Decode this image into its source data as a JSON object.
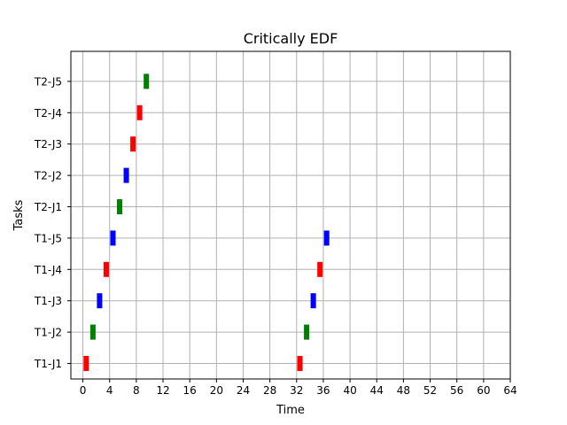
{
  "chart_data": {
    "type": "gantt",
    "title": "Critically EDF",
    "xlabel": "Time",
    "ylabel": "Tasks",
    "xlim": [
      -1.8,
      64
    ],
    "xticks": [
      0,
      4,
      8,
      12,
      16,
      20,
      24,
      28,
      32,
      36,
      40,
      44,
      48,
      52,
      56,
      60,
      64
    ],
    "grid": true,
    "tasks": [
      "T1-J1",
      "T1-J2",
      "T1-J3",
      "T1-J4",
      "T1-J5",
      "T2-J1",
      "T2-J2",
      "T2-J3",
      "T2-J4",
      "T2-J5"
    ],
    "colors": {
      "red": "#ff0000",
      "green": "#008000",
      "blue": "#0000ff"
    },
    "bars": [
      {
        "task": "T1-J1",
        "start": 0,
        "end": 1,
        "color": "red"
      },
      {
        "task": "T1-J2",
        "start": 1,
        "end": 2,
        "color": "green"
      },
      {
        "task": "T1-J3",
        "start": 2,
        "end": 3,
        "color": "blue"
      },
      {
        "task": "T1-J4",
        "start": 3,
        "end": 4,
        "color": "red"
      },
      {
        "task": "T1-J5",
        "start": 4,
        "end": 5,
        "color": "blue"
      },
      {
        "task": "T2-J1",
        "start": 5,
        "end": 6,
        "color": "green"
      },
      {
        "task": "T2-J2",
        "start": 6,
        "end": 7,
        "color": "blue"
      },
      {
        "task": "T2-J3",
        "start": 7,
        "end": 8,
        "color": "red"
      },
      {
        "task": "T2-J4",
        "start": 8,
        "end": 9,
        "color": "red"
      },
      {
        "task": "T2-J5",
        "start": 9,
        "end": 10,
        "color": "green"
      },
      {
        "task": "T1-J1",
        "start": 32,
        "end": 33,
        "color": "red"
      },
      {
        "task": "T1-J2",
        "start": 33,
        "end": 34,
        "color": "green"
      },
      {
        "task": "T1-J3",
        "start": 34,
        "end": 35,
        "color": "blue"
      },
      {
        "task": "T1-J4",
        "start": 35,
        "end": 36,
        "color": "red"
      },
      {
        "task": "T1-J5",
        "start": 36,
        "end": 37,
        "color": "blue"
      }
    ]
  }
}
